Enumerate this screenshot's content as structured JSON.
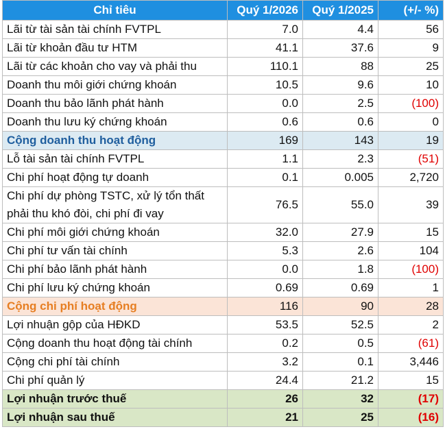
{
  "headers": [
    "Chỉ tiêu",
    "Quý 1/2026",
    "Quý 1/2025",
    "(+/- %)"
  ],
  "rows": [
    {
      "label": "Lãi từ tài sản tài chính FVTPL",
      "q2026": "7.0",
      "q2025": "4.4",
      "change": "56",
      "negative": false
    },
    {
      "label": "Lãi từ khoản đầu tư HTM",
      "q2026": "41.1",
      "q2025": "37.6",
      "change": "9",
      "negative": false
    },
    {
      "label": "Lãi từ các khoản cho vay và phải thu",
      "q2026": "110.1",
      "q2025": "88",
      "change": "25",
      "negative": false
    },
    {
      "label": "Doanh thu môi giới chứng khoán",
      "q2026": "10.5",
      "q2025": "9.6",
      "change": "10",
      "negative": false
    },
    {
      "label": "Doanh thu bảo lãnh phát hành",
      "q2026": "0.0",
      "q2025": "2.5",
      "change": "(100)",
      "negative": true
    },
    {
      "label": "Doanh thu lưu ký chứng khoán",
      "q2026": "0.6",
      "q2025": "0.6",
      "change": "0",
      "negative": false
    },
    {
      "label": "Cộng doanh thu hoạt động",
      "q2026": "169",
      "q2025": "143",
      "change": "19",
      "negative": false
    },
    {
      "label": "Lỗ tài sản tài chính FVTPL",
      "q2026": "1.1",
      "q2025": "2.3",
      "change": "(51)",
      "negative": true
    },
    {
      "label": "Chi phí hoạt động tự doanh",
      "q2026": "0.1",
      "q2025": "0.005",
      "change": "2,720",
      "negative": false
    },
    {
      "label": "Chi phí dự phòng TSTC, xử lý tổn thất phải thu khó đòi, chi phí đi vay",
      "q2026": "76.5",
      "q2025": "55.0",
      "change": "39",
      "negative": false
    },
    {
      "label": "Chi phí môi giới chứng khoán",
      "q2026": "32.0",
      "q2025": "27.9",
      "change": "15",
      "negative": false
    },
    {
      "label": "Chi phí tư vấn tài chính",
      "q2026": "5.3",
      "q2025": "2.6",
      "change": "104",
      "negative": false
    },
    {
      "label": "Chi phí bảo lãnh phát hành",
      "q2026": "0.0",
      "q2025": "1.8",
      "change": "(100)",
      "negative": true
    },
    {
      "label": "Chi phí lưu ký chứng khoán",
      "q2026": "0.69",
      "q2025": "0.69",
      "change": "1",
      "negative": false
    },
    {
      "label": "Cộng chi phí hoạt động",
      "q2026": "116",
      "q2025": "90",
      "change": "28",
      "negative": false
    },
    {
      "label": "Lợi nhuận gộp của HĐKD",
      "q2026": "53.5",
      "q2025": "52.5",
      "change": "2",
      "negative": false
    },
    {
      "label": "Cộng doanh thu hoạt động tài chính",
      "q2026": "0.2",
      "q2025": "0.5",
      "change": "(61)",
      "negative": true
    },
    {
      "label": "Cộng chi phí tài chính",
      "q2026": "3.2",
      "q2025": "0.1",
      "change": "3,446",
      "negative": false
    },
    {
      "label": "Chi phí quản lý",
      "q2026": "24.4",
      "q2025": "21.2",
      "change": "15",
      "negative": false
    },
    {
      "label": "Lợi nhuận trước thuế",
      "q2026": "26",
      "q2025": "32",
      "change": "(17)",
      "negative": true
    },
    {
      "label": "Lợi nhuận sau thuế",
      "q2026": "21",
      "q2025": "25",
      "change": "(16)",
      "negative": true
    }
  ],
  "colors": {
    "header_bg": "#1f8fe0",
    "revenue_total_bg": "#dceaf2",
    "revenue_total_text": "#1f5e9e",
    "cost_total_bg": "#fbe4d7",
    "cost_total_text": "#e67e22",
    "profit_bg": "#d9e7c6",
    "negative_text": "#e00000"
  }
}
